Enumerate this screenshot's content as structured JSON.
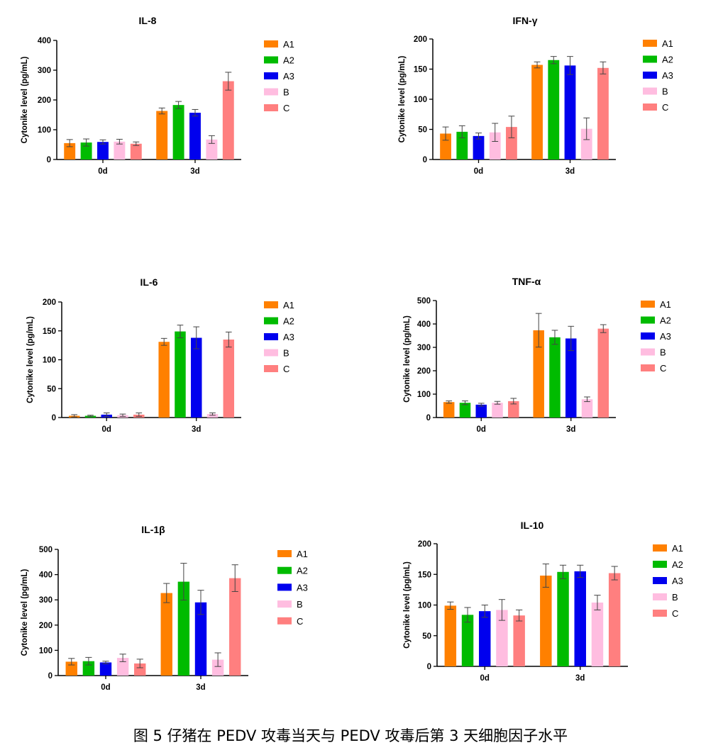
{
  "figure": {
    "caption": "图 5 仔猪在 PEDV 攻毒当天与 PEDV 攻毒后第 3 天细胞因子水平"
  },
  "legend_colors": {
    "A1": "#ff8000",
    "A2": "#00bb00",
    "A3": "#0000ee",
    "B": "#ffbde0",
    "C": "#ff7f7f"
  },
  "chart_data": [
    {
      "type": "bar",
      "title": "IL-8",
      "xlabel": "",
      "ylabel": "Cytonike level (pg/mL)",
      "categories": [
        "0d",
        "3d"
      ],
      "ylim": [
        0,
        400
      ],
      "yticks": [
        0,
        100,
        200,
        300,
        400
      ],
      "legend": [
        "A1",
        "A2",
        "A3",
        "B",
        "C"
      ],
      "series": [
        {
          "name": "A1",
          "values": [
            55,
            163
          ],
          "errors": [
            12,
            10
          ]
        },
        {
          "name": "A2",
          "values": [
            57,
            183
          ],
          "errors": [
            12,
            12
          ]
        },
        {
          "name": "A3",
          "values": [
            59,
            157
          ],
          "errors": [
            7,
            11
          ]
        },
        {
          "name": "B",
          "values": [
            60,
            67
          ],
          "errors": [
            8,
            13
          ]
        },
        {
          "name": "C",
          "values": [
            53,
            263
          ],
          "errors": [
            6,
            30
          ]
        }
      ]
    },
    {
      "type": "bar",
      "title": "IFN-γ",
      "xlabel": "",
      "ylabel": "Cytonike level (pg/mL)",
      "categories": [
        "0d",
        "3d"
      ],
      "ylim": [
        0,
        200
      ],
      "yticks": [
        0,
        50,
        100,
        150,
        200
      ],
      "legend": [
        "A1",
        "A2",
        "A3",
        "B",
        "C"
      ],
      "series": [
        {
          "name": "A1",
          "values": [
            43,
            157
          ],
          "errors": [
            11,
            5
          ]
        },
        {
          "name": "A2",
          "values": [
            46,
            165
          ],
          "errors": [
            10,
            6
          ]
        },
        {
          "name": "A3",
          "values": [
            39,
            156
          ],
          "errors": [
            5,
            15
          ]
        },
        {
          "name": "B",
          "values": [
            45,
            51
          ],
          "errors": [
            15,
            18
          ]
        },
        {
          "name": "C",
          "values": [
            54,
            152
          ],
          "errors": [
            18,
            10
          ]
        }
      ]
    },
    {
      "type": "bar",
      "title": "IL-6",
      "xlabel": "",
      "ylabel": "Cytonike level (pg/mL)",
      "categories": [
        "0d",
        "3d"
      ],
      "ylim": [
        0,
        200
      ],
      "yticks": [
        0,
        50,
        100,
        150,
        200
      ],
      "legend": [
        "A1",
        "A2",
        "A3",
        "B",
        "C"
      ],
      "series": [
        {
          "name": "A1",
          "values": [
            3,
            131
          ],
          "errors": [
            2,
            6
          ]
        },
        {
          "name": "A2",
          "values": [
            3,
            149
          ],
          "errors": [
            1,
            11
          ]
        },
        {
          "name": "A3",
          "values": [
            5,
            138
          ],
          "errors": [
            3,
            19
          ]
        },
        {
          "name": "B",
          "values": [
            4,
            6
          ],
          "errors": [
            2,
            2
          ]
        },
        {
          "name": "C",
          "values": [
            5,
            135
          ],
          "errors": [
            3,
            13
          ]
        }
      ]
    },
    {
      "type": "bar",
      "title": "TNF-α",
      "xlabel": "",
      "ylabel": "Cytonike level (pg/mL)",
      "categories": [
        "0d",
        "3d"
      ],
      "ylim": [
        0,
        500
      ],
      "yticks": [
        0,
        100,
        200,
        300,
        400,
        500
      ],
      "legend": [
        "A1",
        "A2",
        "A3",
        "B",
        "C"
      ],
      "series": [
        {
          "name": "A1",
          "values": [
            66,
            373
          ],
          "errors": [
            5,
            72
          ]
        },
        {
          "name": "A2",
          "values": [
            63,
            343
          ],
          "errors": [
            8,
            30
          ]
        },
        {
          "name": "A3",
          "values": [
            55,
            338
          ],
          "errors": [
            6,
            52
          ]
        },
        {
          "name": "B",
          "values": [
            63,
            78
          ],
          "errors": [
            6,
            10
          ]
        },
        {
          "name": "C",
          "values": [
            70,
            380
          ],
          "errors": [
            12,
            17
          ]
        }
      ]
    },
    {
      "type": "bar",
      "title": "IL-1β",
      "xlabel": "",
      "ylabel": "Cytonike level (pg/mL)",
      "categories": [
        "0d",
        "3d"
      ],
      "ylim": [
        0,
        500
      ],
      "yticks": [
        0,
        100,
        200,
        300,
        400,
        500
      ],
      "legend": [
        "A1",
        "A2",
        "A3",
        "B",
        "C"
      ],
      "series": [
        {
          "name": "A1",
          "values": [
            55,
            327
          ],
          "errors": [
            13,
            38
          ]
        },
        {
          "name": "A2",
          "values": [
            57,
            372
          ],
          "errors": [
            15,
            73
          ]
        },
        {
          "name": "A3",
          "values": [
            52,
            290
          ],
          "errors": [
            5,
            48
          ]
        },
        {
          "name": "B",
          "values": [
            70,
            63
          ],
          "errors": [
            15,
            27
          ]
        },
        {
          "name": "C",
          "values": [
            48,
            386
          ],
          "errors": [
            17,
            53
          ]
        }
      ]
    },
    {
      "type": "bar",
      "title": "IL-10",
      "xlabel": "",
      "ylabel": "Cytonike level (pg/mL)",
      "categories": [
        "0d",
        "3d"
      ],
      "ylim": [
        0,
        200
      ],
      "yticks": [
        0,
        50,
        100,
        150,
        200
      ],
      "legend": [
        "A1",
        "A2",
        "A3",
        "B",
        "C"
      ],
      "series": [
        {
          "name": "A1",
          "values": [
            99,
            148
          ],
          "errors": [
            6,
            19
          ]
        },
        {
          "name": "A2",
          "values": [
            84,
            154
          ],
          "errors": [
            12,
            11
          ]
        },
        {
          "name": "A3",
          "values": [
            90,
            155
          ],
          "errors": [
            10,
            10
          ]
        },
        {
          "name": "B",
          "values": [
            92,
            104
          ],
          "errors": [
            17,
            12
          ]
        },
        {
          "name": "C",
          "values": [
            83,
            152
          ],
          "errors": [
            9,
            11
          ]
        }
      ]
    }
  ]
}
